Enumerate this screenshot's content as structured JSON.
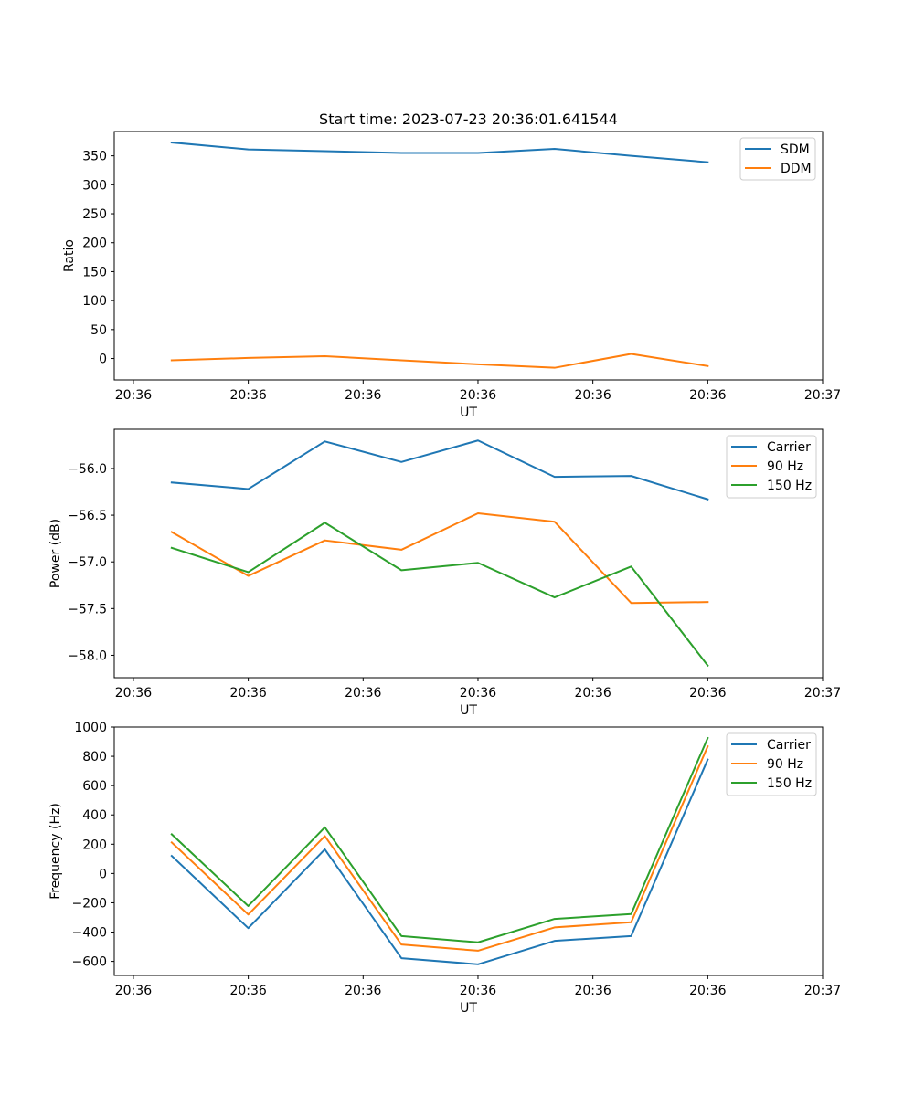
{
  "chart_data": [
    {
      "type": "line",
      "title": "Start time: 2023-07-23 20:36:01.641544",
      "xlabel": "UT",
      "ylabel": "Ratio",
      "x": [
        0,
        1,
        2,
        3,
        4,
        5,
        6,
        7
      ],
      "xlim": [
        -0.75,
        8.5
      ],
      "x_ticks": [
        -0.5,
        1,
        2.5,
        4,
        5.5,
        7,
        8.5
      ],
      "x_tick_labels": [
        "20:36",
        "20:36",
        "20:36",
        "20:36",
        "20:36",
        "20:36",
        "20:37"
      ],
      "ylim": [
        -37,
        392
      ],
      "y_ticks": [
        0,
        50,
        100,
        150,
        200,
        250,
        300,
        350
      ],
      "y_tick_labels": [
        "0",
        "50",
        "100",
        "150",
        "200",
        "250",
        "300",
        "350"
      ],
      "legend": "top-right",
      "series": [
        {
          "name": "SDM",
          "color": "#1f77b4",
          "values": [
            373,
            361,
            358,
            355,
            355,
            362,
            350,
            339
          ]
        },
        {
          "name": "DDM",
          "color": "#ff7f0e",
          "values": [
            -3,
            1,
            4,
            -3,
            -10,
            -16,
            8,
            -13
          ]
        }
      ]
    },
    {
      "type": "line",
      "title": "",
      "xlabel": "UT",
      "ylabel": "Power (dB)",
      "x": [
        0,
        1,
        2,
        3,
        4,
        5,
        6,
        7
      ],
      "xlim": [
        -0.75,
        8.5
      ],
      "x_ticks": [
        -0.5,
        1,
        2.5,
        4,
        5.5,
        7,
        8.5
      ],
      "x_tick_labels": [
        "20:36",
        "20:36",
        "20:36",
        "20:36",
        "20:36",
        "20:36",
        "20:37"
      ],
      "ylim": [
        -58.24,
        -55.58
      ],
      "y_ticks": [
        -58.0,
        -57.5,
        -57.0,
        -56.5,
        -56.0
      ],
      "y_tick_labels": [
        "−58.0",
        "−57.5",
        "−57.0",
        "−56.5",
        "−56.0"
      ],
      "legend": "top-right",
      "series": [
        {
          "name": "Carrier",
          "color": "#1f77b4",
          "values": [
            -56.15,
            -56.22,
            -55.71,
            -55.93,
            -55.7,
            -56.09,
            -56.08,
            -56.33
          ]
        },
        {
          "name": "90 Hz",
          "color": "#ff7f0e",
          "values": [
            -56.68,
            -57.15,
            -56.77,
            -56.87,
            -56.48,
            -56.57,
            -57.44,
            -57.43
          ]
        },
        {
          "name": "150 Hz",
          "color": "#2ca02c",
          "values": [
            -56.85,
            -57.11,
            -56.58,
            -57.09,
            -57.01,
            -57.38,
            -57.05,
            -58.11
          ]
        }
      ]
    },
    {
      "type": "line",
      "title": "",
      "xlabel": "UT",
      "ylabel": "Frequency (Hz)",
      "x": [
        0,
        1,
        2,
        3,
        4,
        5,
        6,
        7
      ],
      "xlim": [
        -0.75,
        8.5
      ],
      "x_ticks": [
        -0.5,
        1,
        2.5,
        4,
        5.5,
        7,
        8.5
      ],
      "x_tick_labels": [
        "20:36",
        "20:36",
        "20:36",
        "20:36",
        "20:36",
        "20:36",
        "20:37"
      ],
      "ylim": [
        -696,
        1000
      ],
      "y_ticks": [
        -600,
        -400,
        -200,
        0,
        200,
        400,
        600,
        800,
        1000
      ],
      "y_tick_labels": [
        "−600",
        "−400",
        "−200",
        "0",
        "200",
        "400",
        "600",
        "800",
        "1000"
      ],
      "legend": "top-right",
      "series": [
        {
          "name": "Carrier",
          "color": "#1f77b4",
          "values": [
            120,
            -373,
            165,
            -578,
            -620,
            -460,
            -427,
            778
          ]
        },
        {
          "name": "90 Hz",
          "color": "#ff7f0e",
          "values": [
            212,
            -280,
            255,
            -485,
            -527,
            -368,
            -333,
            868
          ]
        },
        {
          "name": "150 Hz",
          "color": "#2ca02c",
          "values": [
            268,
            -222,
            315,
            -427,
            -470,
            -310,
            -277,
            925
          ]
        }
      ]
    }
  ]
}
